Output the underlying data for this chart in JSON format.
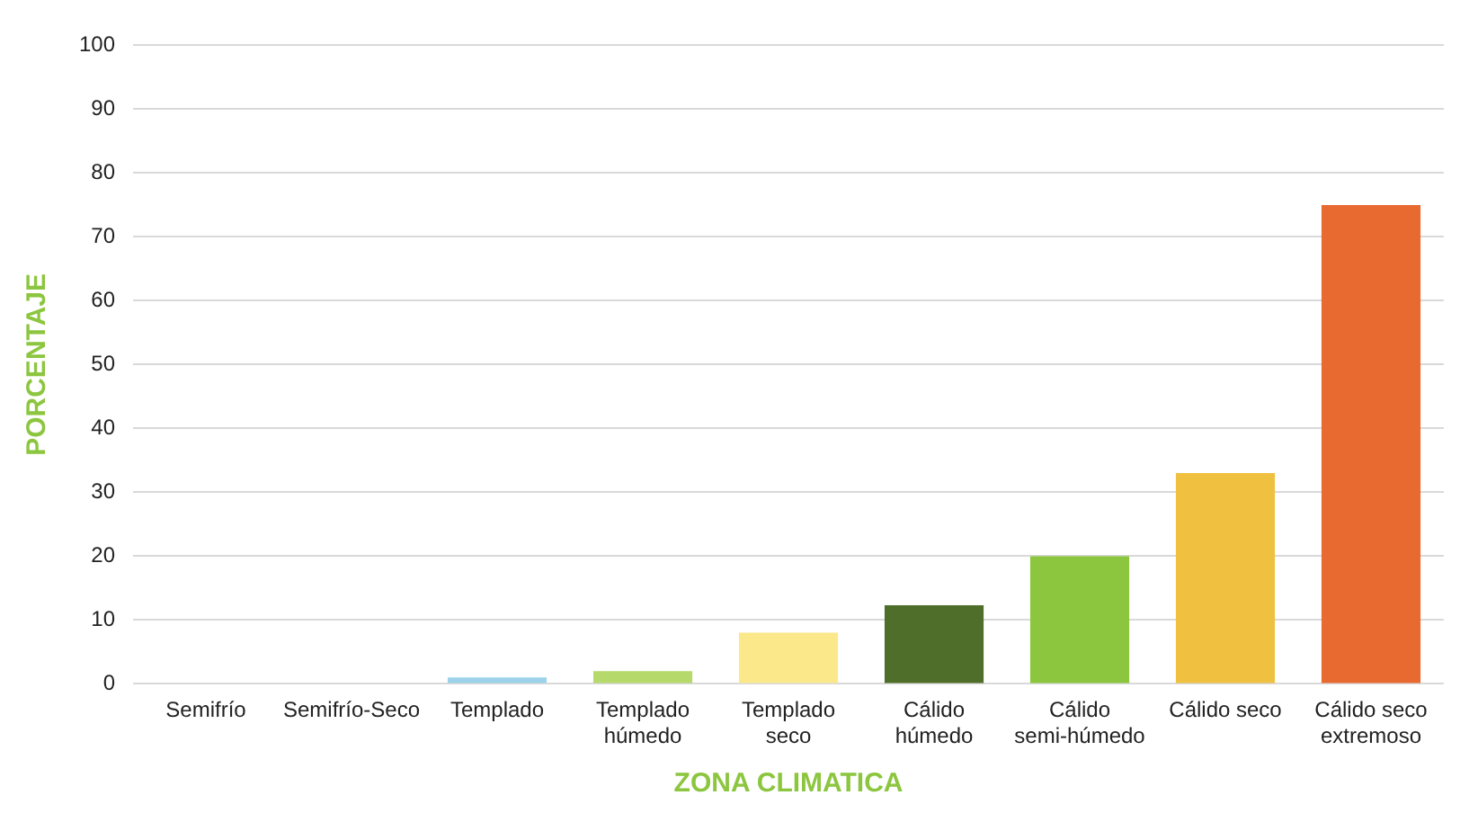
{
  "chart_data": {
    "type": "bar",
    "xlabel": "ZONA CLIMATICA",
    "ylabel": "PORCENTAJE",
    "categories": [
      "Semifrío",
      "Semifrío-Seco",
      "Templado",
      "Templado\nhúmedo",
      "Templado\nseco",
      "Cálido\nhúmedo",
      "Cálido\nsemi-húmedo",
      "Cálido seco",
      "Cálido seco\nextremoso"
    ],
    "values": [
      0,
      0,
      1,
      2,
      8,
      12.3,
      20,
      33,
      75
    ],
    "colors": [
      "#cfe6f2",
      "#d8e8b0",
      "#9dd3ea",
      "#b5d96a",
      "#fbe88a",
      "#4f6e2a",
      "#8cc63f",
      "#f0c040",
      "#e86a30"
    ],
    "ylim": [
      0,
      100
    ],
    "yticks": [
      0,
      10,
      20,
      30,
      40,
      50,
      60,
      70,
      80,
      90,
      100
    ],
    "grid": "y"
  }
}
